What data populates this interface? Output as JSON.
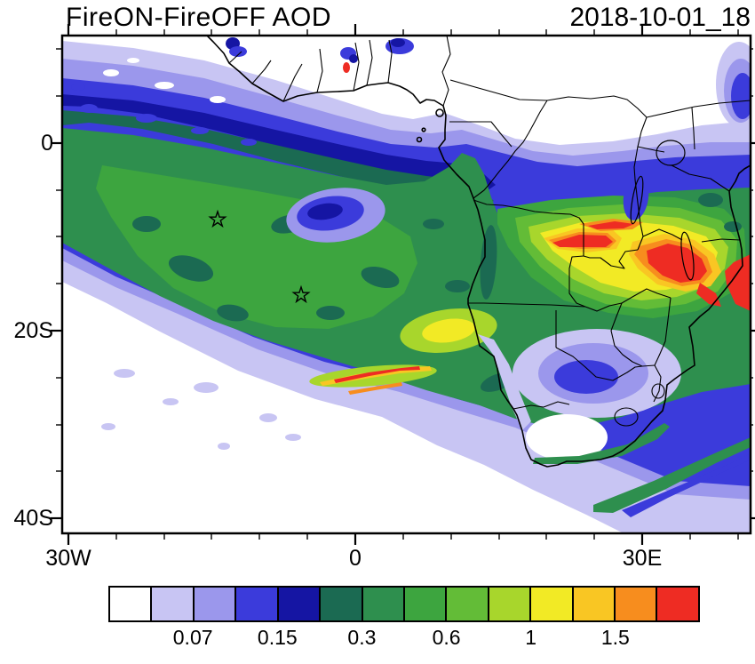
{
  "header": {
    "title": "FireON-FireOFF AOD",
    "date": "2018-10-01_18"
  },
  "chart_data": {
    "type": "heatmap",
    "title": "FireON-FireOFF AOD",
    "timestamp": "2018-10-01_18",
    "projection": "lon-lat map of Africa and the South Atlantic",
    "grid": false,
    "axes": {
      "x": {
        "range_deg": [
          -31,
          41.3
        ],
        "ticks": [
          {
            "label": "30W"
          },
          {
            "label": "0"
          },
          {
            "label": "30E"
          }
        ]
      },
      "y": {
        "range_deg": [
          -41.5,
          11.4
        ],
        "ticks": [
          {
            "label": "0"
          },
          {
            "label": "20S"
          },
          {
            "label": "40S"
          }
        ]
      }
    },
    "colorbar": {
      "orientation": "horizontal",
      "n_colors": 14,
      "colors": [
        "#ffffff",
        "#c8c5f3",
        "#9b97ec",
        "#3b3bdb",
        "#1515a3",
        "#1b6a52",
        "#2e8f4e",
        "#3da53f",
        "#63bc37",
        "#a8d62c",
        "#f2ea25",
        "#f9c623",
        "#f78d1e",
        "#ee2c23"
      ],
      "labels": [
        {
          "text": "0.07",
          "boundary_index": 2
        },
        {
          "text": "0.15",
          "boundary_index": 4
        },
        {
          "text": "0.3",
          "boundary_index": 6
        },
        {
          "text": "0.6",
          "boundary_index": 8
        },
        {
          "text": "1",
          "boundary_index": 10
        },
        {
          "text": "1.5",
          "boundary_index": 12
        }
      ]
    },
    "markers": [
      {
        "symbol": "star",
        "lon_approx": -14.4,
        "lat_approx": -8.1
      },
      {
        "symbol": "star",
        "lon_approx": -5.6,
        "lat_approx": -16.3
      }
    ],
    "features": [
      "smoke plume of AOD ~0.3-0.6 spanning the South Atlantic from the NW ocean to southern Africa",
      "high AOD > 1.5 band over Zambia / Malawi / Mozambique",
      "yellow patch ~1 near 10E 19S",
      "thin high-AOD streak near 25S between 4W and 7E",
      "low-AOD hole near 6W 8S",
      "low values over Kalahari / interior South Africa"
    ]
  }
}
